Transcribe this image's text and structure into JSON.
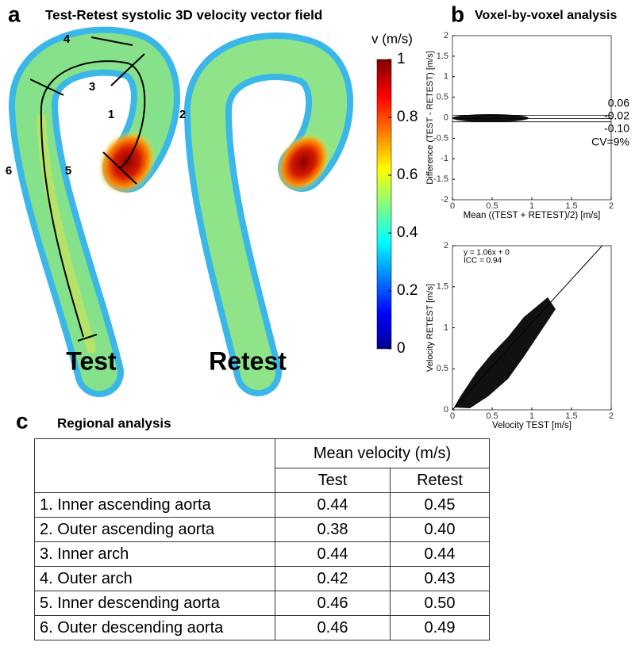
{
  "panel_a": {
    "letter": "a",
    "title": "Test-Retest systolic 3D velocity vector field",
    "labels": [
      "Test",
      "Retest"
    ],
    "region_numbers": [
      "1",
      "2",
      "3",
      "4",
      "5",
      "6"
    ],
    "colorbar": {
      "label": "v (m/s)",
      "lim": [
        0,
        1
      ],
      "ticks": [
        0,
        0.2,
        0.4,
        0.6,
        0.8,
        1
      ]
    }
  },
  "panel_b": {
    "letter": "b",
    "title": "Voxel-by-voxel analysis",
    "bland_altman": {
      "type": "scatter",
      "xlabel": "Mean ((TEST + RETEST)/2) [m/s]",
      "ylabel": "Difference (TEST - RETEST) [m/s]",
      "xlim": [
        0,
        2
      ],
      "ylim": [
        -2,
        2
      ],
      "xticks": [
        0,
        0.5,
        1,
        1.5,
        2
      ],
      "yticks": [
        -2,
        -1.5,
        -1,
        -0.5,
        0,
        0.5,
        1,
        1.5,
        2
      ],
      "lines": [
        {
          "value": 0.06,
          "label": "0.06"
        },
        {
          "value": -0.02,
          "label": "-0.02"
        },
        {
          "value": -0.1,
          "label": "-0.10"
        }
      ],
      "annotations": [
        "CV=9%"
      ]
    },
    "correlation": {
      "type": "scatter",
      "xlabel": "Velocity TEST [m/s]",
      "ylabel": "Velocity RETEST [m/s]",
      "xlim": [
        0,
        2
      ],
      "ylim": [
        0,
        2
      ],
      "xticks": [
        0,
        0.5,
        1,
        1.5,
        2
      ],
      "yticks": [
        0,
        0.5,
        1,
        1.5,
        2
      ],
      "fit": {
        "slope": 1.06,
        "intercept": 0
      },
      "annotations": [
        "y = 1.06x + 0",
        "ICC = 0.94"
      ]
    }
  },
  "panel_c": {
    "letter": "c",
    "title": "Regional analysis",
    "table": {
      "group_header": "Mean velocity (m/s)",
      "columns": [
        "Test",
        "Retest"
      ],
      "rows": [
        [
          "1. Inner ascending aorta",
          "0.44",
          "0.45"
        ],
        [
          "2. Outer ascending aorta",
          "0.38",
          "0.40"
        ],
        [
          "3. Inner arch",
          "0.44",
          "0.44"
        ],
        [
          "4. Outer arch",
          "0.42",
          "0.43"
        ],
        [
          "5. Inner descending aorta",
          "0.46",
          "0.50"
        ],
        [
          "6. Outer descending aorta",
          "0.46",
          "0.49"
        ]
      ]
    }
  }
}
